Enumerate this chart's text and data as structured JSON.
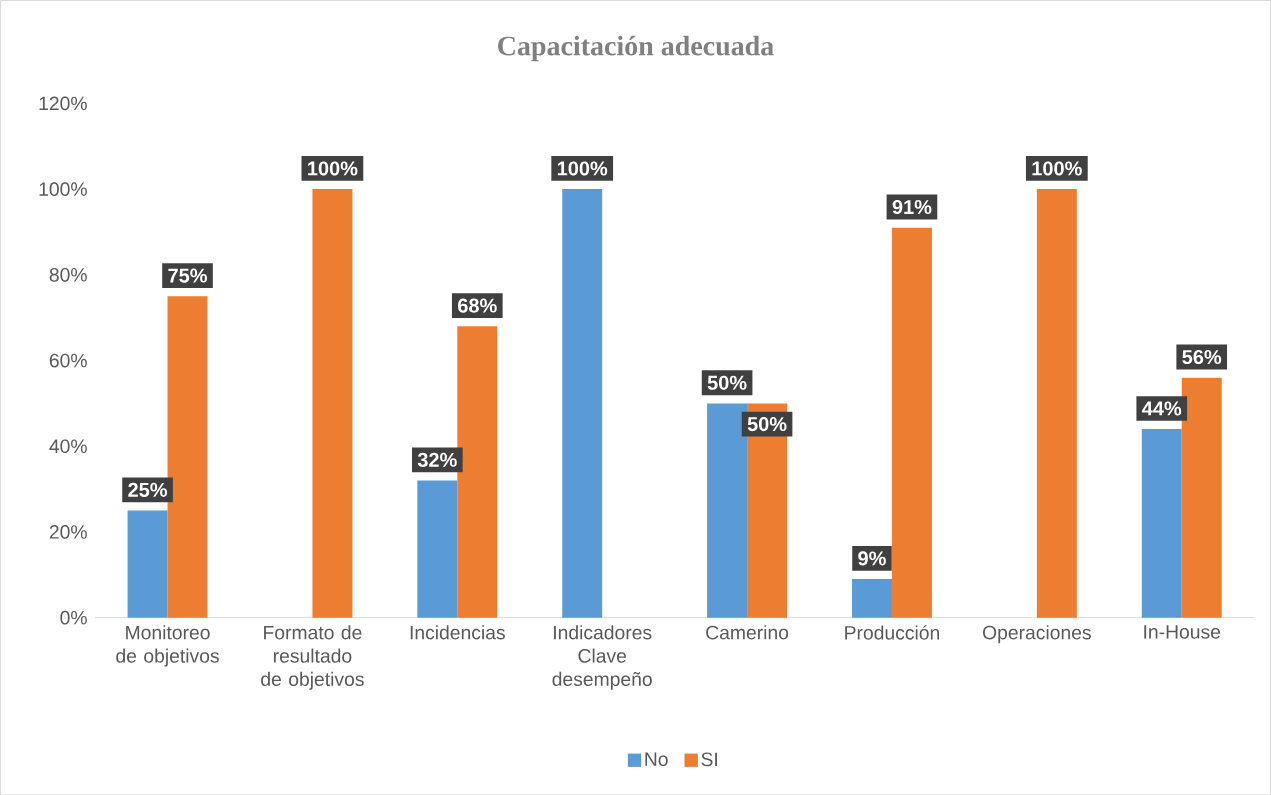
{
  "chart_data": {
    "type": "bar",
    "title": "Capacitación adecuada",
    "categories": [
      "Monitoreo de objetivos",
      "Formato de resultado de objetivos",
      "Incidencias",
      "Indicadores Clave desempeño",
      "Camerino",
      "Producción",
      "Operaciones",
      "In-House"
    ],
    "series": [
      {
        "name": "No",
        "color": "#5b9bd5",
        "values": [
          25,
          null,
          32,
          100,
          50,
          9,
          null,
          44
        ],
        "value_labels": [
          "25%",
          null,
          "32%",
          "100%",
          "50%",
          "9%",
          null,
          "44%"
        ]
      },
      {
        "name": "SI",
        "color": "#ed7d31",
        "values": [
          75,
          100,
          68,
          null,
          50,
          91,
          100,
          56
        ],
        "value_labels": [
          "75%",
          "100%",
          "68%",
          null,
          "50%",
          "91%",
          "100%",
          "56%"
        ]
      }
    ],
    "ylim": [
      0,
      120
    ],
    "yticks": [
      {
        "value": 0,
        "label": "0%"
      },
      {
        "value": 20,
        "label": "20%"
      },
      {
        "value": 40,
        "label": "40%"
      },
      {
        "value": 60,
        "label": "60%"
      },
      {
        "value": 80,
        "label": "80%"
      },
      {
        "value": 100,
        "label": "100%"
      },
      {
        "value": 120,
        "label": "120%"
      }
    ],
    "grid": false,
    "legend": "bottom"
  }
}
